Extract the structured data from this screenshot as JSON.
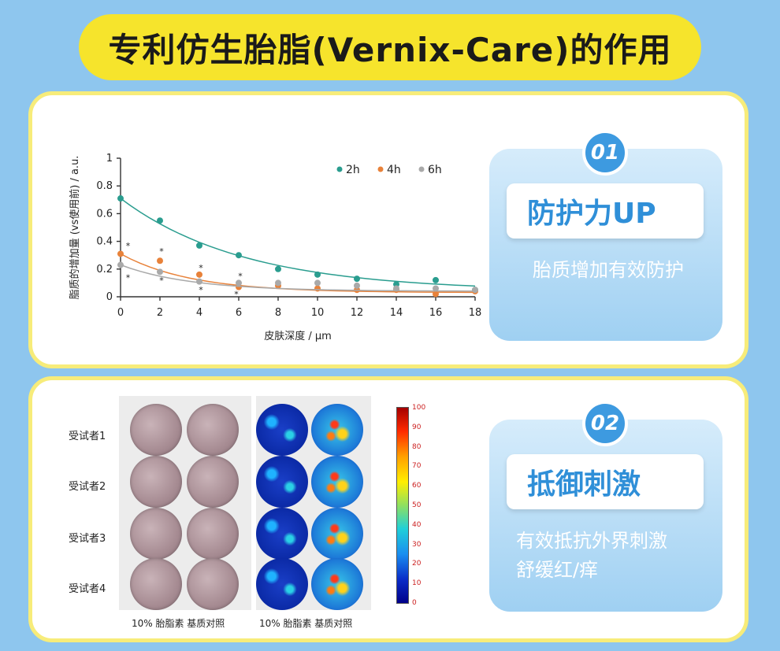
{
  "title": "专利仿生胎脂(Vernix-Care)的作用",
  "section1": {
    "badge": "01",
    "heading": "防护力UP",
    "description": "胎质增加有效防护"
  },
  "section2": {
    "badge": "02",
    "heading": "抵御刺激",
    "description_line1": "有效抵抗外界刺激",
    "description_line2": "舒缓红/痒"
  },
  "chart_data": {
    "type": "scatter",
    "xlabel": "皮肤深度 / μm",
    "ylabel": "脂质的增加量 (vs使用前) / a.u.",
    "xlim": [
      0,
      18
    ],
    "ylim": [
      0,
      1
    ],
    "x_ticks": [
      "0",
      "2",
      "4",
      "6",
      "8",
      "10",
      "12",
      "14",
      "16",
      "18"
    ],
    "y_ticks": [
      "0",
      "0.2",
      "0.4",
      "0.6",
      "0.8",
      "1"
    ],
    "legend_position": "top-right",
    "series": [
      {
        "name": "2h",
        "color": "#2a9d8f",
        "x": [
          0,
          2,
          4,
          6,
          8,
          10,
          12,
          14,
          16,
          18
        ],
        "y": [
          0.71,
          0.55,
          0.37,
          0.3,
          0.2,
          0.16,
          0.13,
          0.09,
          0.12,
          0.05
        ]
      },
      {
        "name": "4h",
        "color": "#e8823a",
        "x": [
          0,
          2,
          4,
          6,
          8,
          10,
          12,
          14,
          16,
          18
        ],
        "y": [
          0.31,
          0.26,
          0.16,
          0.07,
          0.08,
          0.06,
          0.05,
          0.05,
          0.02,
          0.04
        ]
      },
      {
        "name": "6h",
        "color": "#a9a9a9",
        "x": [
          0,
          2,
          4,
          6,
          8,
          10,
          12,
          14,
          16,
          18
        ],
        "y": [
          0.23,
          0.18,
          0.11,
          0.1,
          0.1,
          0.1,
          0.08,
          0.06,
          0.06,
          0.05
        ]
      }
    ]
  },
  "heatmap_panel": {
    "subjects": [
      "受试者1",
      "受试者2",
      "受试者3",
      "受试者4"
    ],
    "caption_left": "10% 胎脂素  基质对照",
    "caption_right": "10% 胎脂素  基质对照",
    "colorbar_ticks": [
      "100",
      "90",
      "80",
      "70",
      "60",
      "50",
      "40",
      "30",
      "20",
      "10",
      "0"
    ]
  }
}
